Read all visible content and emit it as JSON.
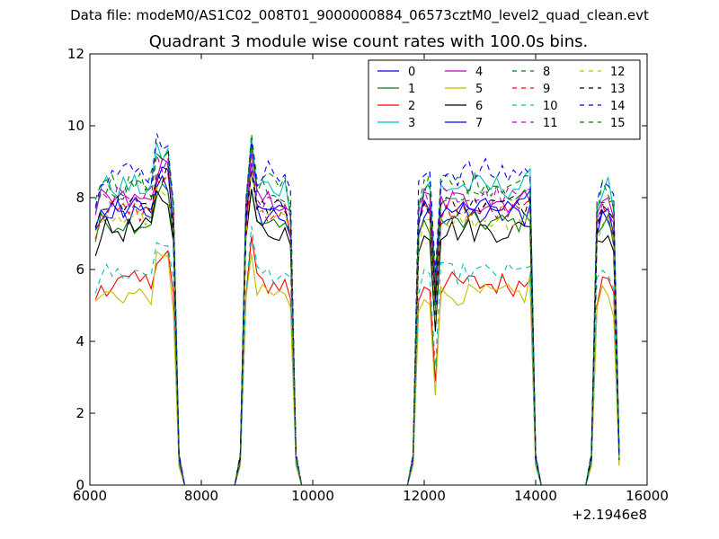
{
  "figure": {
    "suptitle": "Data file: modeM0/AS1C02_008T01_9000000884_06573cztM0_level2_quad_clean.evt"
  },
  "chart_data": {
    "type": "line",
    "title": "Quadrant 3 module wise count rates with 100.0s bins.",
    "xlabel": "",
    "ylabel": "",
    "xlim": [
      6000,
      16000
    ],
    "ylim": [
      0,
      12
    ],
    "xticks": [
      "6000",
      "8000",
      "10000",
      "12000",
      "14000",
      "16000"
    ],
    "yticks": [
      "0",
      "2",
      "4",
      "6",
      "8",
      "10",
      "12"
    ],
    "x_offset_label": "+2.1946e8",
    "grid": false,
    "legend_position": "top-right",
    "legend_columns": 4,
    "series": [
      {
        "name": "0",
        "color": "#0000ff",
        "dash": "solid",
        "level": 7.5,
        "amp": 0.35
      },
      {
        "name": "1",
        "color": "#008000",
        "dash": "solid",
        "level": 7.3,
        "amp": 0.3
      },
      {
        "name": "2",
        "color": "#ff0000",
        "dash": "solid",
        "level": 5.6,
        "amp": 0.35
      },
      {
        "name": "3",
        "color": "#00bfbf",
        "dash": "solid",
        "level": 8.3,
        "amp": 0.35
      },
      {
        "name": "4",
        "color": "#bf00bf",
        "dash": "solid",
        "level": 7.9,
        "amp": 0.35
      },
      {
        "name": "5",
        "color": "#bfbf00",
        "dash": "solid",
        "level": 5.3,
        "amp": 0.3
      },
      {
        "name": "6",
        "color": "#000000",
        "dash": "solid",
        "level": 7.1,
        "amp": 0.35
      },
      {
        "name": "7",
        "color": "#0000ff",
        "dash": "solid",
        "level": 7.7,
        "amp": 0.3
      },
      {
        "name": "8",
        "color": "#008000",
        "dash": "dashed",
        "level": 8.4,
        "amp": 0.35
      },
      {
        "name": "9",
        "color": "#ff0000",
        "dash": "dashed",
        "level": 7.6,
        "amp": 0.3
      },
      {
        "name": "10",
        "color": "#00bfbf",
        "dash": "dashed",
        "level": 5.9,
        "amp": 0.3
      },
      {
        "name": "11",
        "color": "#bf00bf",
        "dash": "dashed",
        "level": 8.0,
        "amp": 0.35
      },
      {
        "name": "12",
        "color": "#bfbf00",
        "dash": "dashed",
        "level": 7.4,
        "amp": 0.3
      },
      {
        "name": "13",
        "color": "#000000",
        "dash": "dashed",
        "level": 7.8,
        "amp": 0.3
      },
      {
        "name": "14",
        "color": "#0000ff",
        "dash": "dashed",
        "level": 8.7,
        "amp": 0.4
      },
      {
        "name": "15",
        "color": "#008000",
        "dash": "dashed",
        "level": 8.2,
        "amp": 0.35
      }
    ],
    "segments": [
      {
        "x_start": 6000,
        "x_end": 7600,
        "note": "active"
      },
      {
        "x_start": 8700,
        "x_end": 9700,
        "note": "active"
      },
      {
        "x_start": 11800,
        "x_end": 14000,
        "note": "active"
      },
      {
        "x_start": 15000,
        "x_end": 15500,
        "note": "active"
      }
    ]
  }
}
